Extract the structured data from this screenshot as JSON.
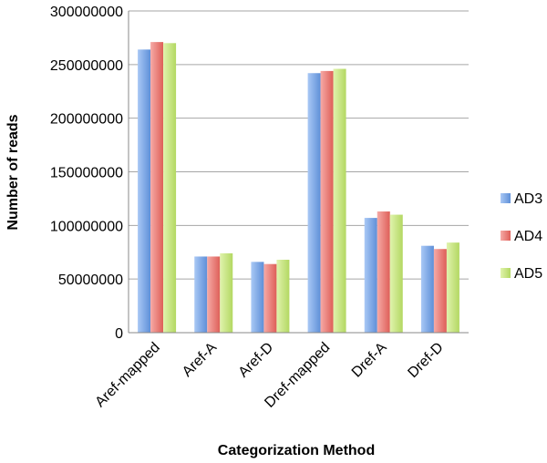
{
  "chart_data": {
    "type": "bar",
    "title": "",
    "xlabel": "Categorization Method",
    "ylabel": "Number of reads",
    "ylim": [
      0,
      300000000
    ],
    "yticks": [
      0,
      50000000,
      100000000,
      150000000,
      200000000,
      250000000,
      300000000
    ],
    "grid": true,
    "legend_position": "right",
    "categories": [
      "Aref-mapped",
      "Aref-A",
      "Aref-D",
      "Dref-mapped",
      "Dref-A",
      "Dref-D"
    ],
    "series": [
      {
        "name": "AD3",
        "color": "#7aa7e8",
        "values": [
          264000000,
          71000000,
          66000000,
          242000000,
          107000000,
          81000000
        ]
      },
      {
        "name": "AD4",
        "color": "#ef8580",
        "values": [
          271000000,
          71000000,
          64000000,
          244000000,
          113000000,
          78000000
        ]
      },
      {
        "name": "AD5",
        "color": "#c6e57f",
        "values": [
          270000000,
          74000000,
          68000000,
          246000000,
          110000000,
          84000000
        ]
      }
    ]
  }
}
